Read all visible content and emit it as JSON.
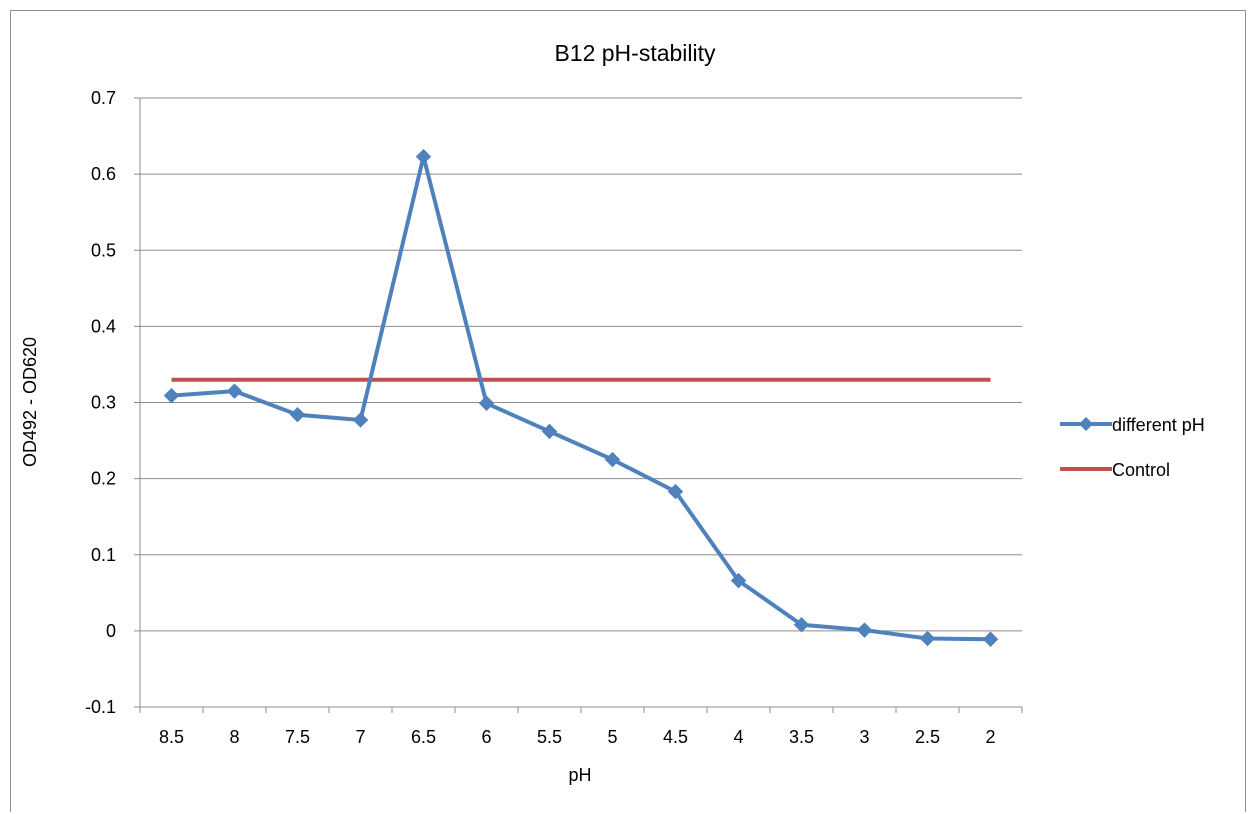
{
  "chart_data": {
    "type": "line",
    "title": "B12 pH-stability",
    "xlabel": "pH",
    "ylabel": "OD492 - OD620",
    "categories": [
      "8.5",
      "8",
      "7.5",
      "7",
      "6.5",
      "6",
      "5.5",
      "5",
      "4.5",
      "4",
      "3.5",
      "3",
      "2.5",
      "2"
    ],
    "ylim": [
      -0.1,
      0.7
    ],
    "yticks": [
      "-0.1",
      "0",
      "0.1",
      "0.2",
      "0.3",
      "0.4",
      "0.5",
      "0.6",
      "0.7"
    ],
    "grid": true,
    "legend_position": "right",
    "series": [
      {
        "name": "different pH",
        "color": "#4f81bd",
        "marker": "diamond",
        "values": [
          0.309,
          0.315,
          0.284,
          0.277,
          0.623,
          0.299,
          0.262,
          0.225,
          0.183,
          0.066,
          0.008,
          0.001,
          -0.01,
          -0.011
        ]
      },
      {
        "name": "Control",
        "color": "#c0504d",
        "marker": "none",
        "values": [
          0.33,
          0.33,
          0.33,
          0.33,
          0.33,
          0.33,
          0.33,
          0.33,
          0.33,
          0.33,
          0.33,
          0.33,
          0.33,
          0.33
        ]
      }
    ]
  }
}
